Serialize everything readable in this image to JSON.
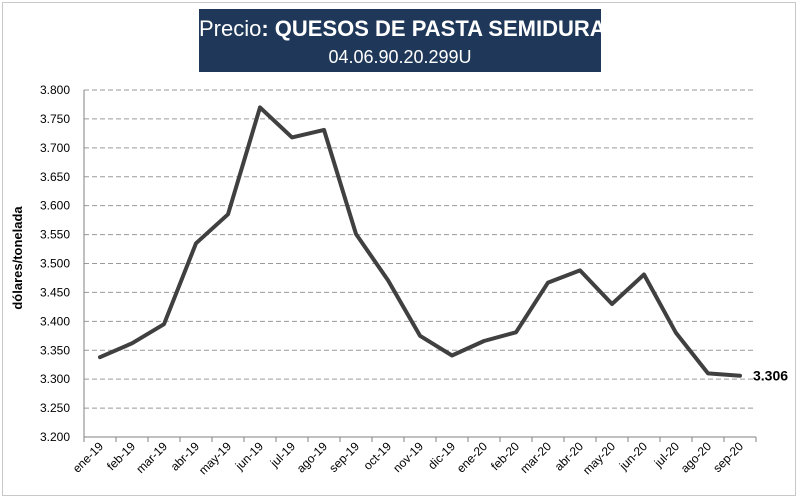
{
  "header": {
    "title_prefix": "Precio",
    "title_main": ": QUESOS DE PASTA SEMIDURA",
    "code": "04.06.90.20.299U"
  },
  "chart_data": {
    "type": "line",
    "title": "Precio: QUESOS DE PASTA SEMIDURA",
    "subtitle": "04.06.90.20.299U",
    "xlabel": "",
    "ylabel": "dólares/tonelada",
    "ylim": [
      3200,
      3800
    ],
    "yticks": [
      3200,
      3250,
      3300,
      3350,
      3400,
      3450,
      3500,
      3550,
      3600,
      3650,
      3700,
      3750,
      3800
    ],
    "ytick_labels": [
      "3.200",
      "3.250",
      "3.300",
      "3.350",
      "3.400",
      "3.450",
      "3.500",
      "3.550",
      "3.600",
      "3.650",
      "3.700",
      "3.750",
      "3.800"
    ],
    "grid": true,
    "categories": [
      "ene-19",
      "feb-19",
      "mar-19",
      "abr-19",
      "may-19",
      "jun-19",
      "jul-19",
      "ago-19",
      "sep-19",
      "oct-19",
      "nov-19",
      "dic-19",
      "ene-20",
      "feb-20",
      "mar-20",
      "abr-20",
      "may-20",
      "jun-20",
      "jul-20",
      "ago-20",
      "sep-20"
    ],
    "series": [
      {
        "color": "#404040",
        "values": [
          3338,
          3362,
          3395,
          3535,
          3585,
          3770,
          3718,
          3731,
          3551,
          3471,
          3375,
          3341,
          3366,
          3381,
          3467,
          3488,
          3430,
          3481,
          3380,
          3310,
          3306
        ]
      }
    ],
    "annotations": [
      {
        "text": "3.306",
        "category": "sep-20",
        "value": 3306
      }
    ]
  }
}
